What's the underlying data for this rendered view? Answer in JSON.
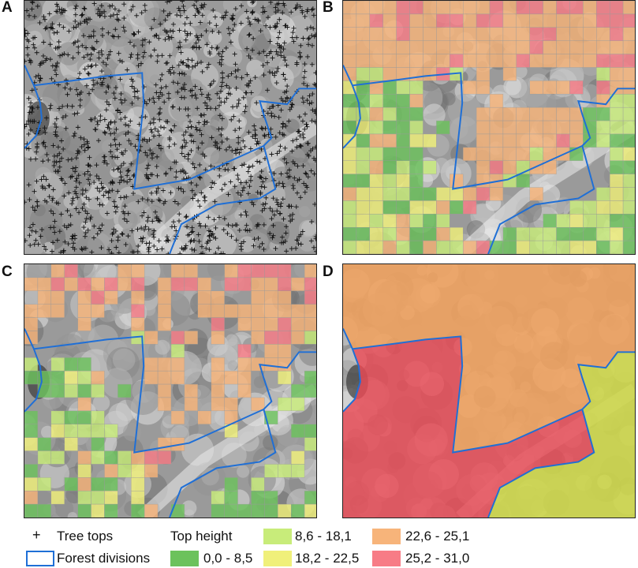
{
  "panels": [
    {
      "letter": "A",
      "mode": "treetops"
    },
    {
      "letter": "B",
      "mode": "grid-full"
    },
    {
      "letter": "C",
      "mode": "grid-partial"
    },
    {
      "letter": "D",
      "mode": "divisions"
    }
  ],
  "legend": {
    "tree_tops_symbol": "+",
    "tree_tops_label": "Tree tops",
    "forest_divisions_label": "Forest divisions",
    "top_height_title": "Top height",
    "classes": [
      {
        "label": "0,0 - 8,5",
        "color": "#6cc25c"
      },
      {
        "label": "8,6 - 18,1",
        "color": "#c8ec7a"
      },
      {
        "label": "18,2 - 22,5",
        "color": "#f0f07a"
      },
      {
        "label": "22,6 - 25,1",
        "color": "#f7b47a"
      },
      {
        "label": "25,2 - 31,0",
        "color": "#f77c86"
      }
    ]
  },
  "colors": {
    "division_line": "#1f6fd6",
    "division_B_fill": "#f0a25e",
    "division_A_fill": "#ea4a55",
    "division_C_fill": "#cfd84a"
  }
}
